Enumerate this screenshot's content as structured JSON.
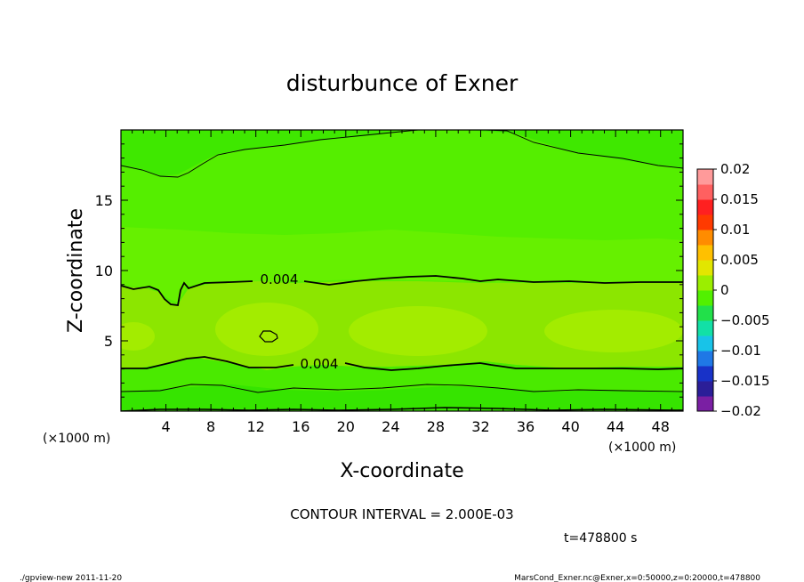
{
  "chart_data": {
    "type": "heatmap",
    "title": "disturbunce of Exner",
    "xlabel": "X-coordinate",
    "ylabel": "Z-coordinate",
    "x_unit": "(×1000 m)",
    "y_unit": "(×1000 m)",
    "xlim": [
      0,
      50
    ],
    "ylim": [
      0,
      20
    ],
    "x_ticks": [
      4,
      8,
      12,
      16,
      20,
      24,
      28,
      32,
      36,
      40,
      44,
      48
    ],
    "y_ticks": [
      5,
      10,
      15
    ],
    "colorbar": {
      "levels": [
        -0.02,
        -0.015,
        -0.01,
        -0.005,
        0,
        0.005,
        0.01,
        0.015,
        0.02
      ],
      "tick_labels": [
        "0.02",
        "0.015",
        "0.01",
        "0.005",
        "0",
        "−0.005",
        "−0.01",
        "−0.015",
        "−0.02"
      ],
      "colors": [
        "#7a1fa3",
        "#2b1e98",
        "#1832c8",
        "#1f78e6",
        "#18c3e8",
        "#12e0a6",
        "#22e04a",
        "#52f000",
        "#9bee00",
        "#e2e600",
        "#ffc000",
        "#ff8c00",
        "#ff3a00",
        "#ff2020",
        "#ff6060",
        "#ff9a9a"
      ]
    },
    "contour_labels": [
      "0.004",
      "0.004"
    ],
    "contour_interval_text": "CONTOUR INTERVAL = 2.000E-03",
    "time_text": "t=478800 s"
  },
  "footer": {
    "left": "./gpview-new  2011-11-20",
    "right": "MarsCond_Exner.nc@Exner,x=0:50000,z=0:20000,t=478800"
  }
}
